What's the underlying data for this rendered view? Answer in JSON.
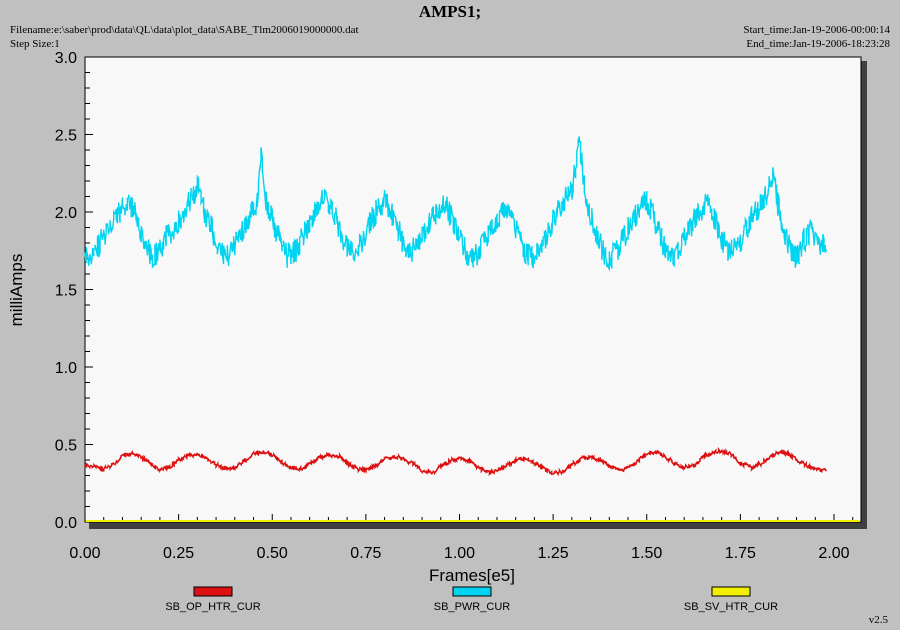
{
  "header": {
    "title": "AMPS1;",
    "filename": "Filename:e:\\saber\\prod\\data\\QL\\data\\plot_data\\SABE_Tlm2006019000000.dat",
    "step_size": "Step Size:1",
    "start_time": "Start_time:Jan-19-2006-00:00:14",
    "end_time": "End_time:Jan-19-2006-18:23:28",
    "version": "v2.5"
  },
  "colors": {
    "background": "#c0c0c0",
    "plot_area": "#f8f8f8",
    "shadow": "#404040"
  },
  "chart_data": {
    "type": "line",
    "title": "AMPS1;",
    "xlabel": "Frames[e5]",
    "ylabel": "milliAmps",
    "xlim": [
      0.0,
      2.1
    ],
    "ylim": [
      0.0,
      3.0
    ],
    "x_ticks": [
      "0.00",
      "0.25",
      "0.50",
      "0.75",
      "1.00",
      "1.25",
      "1.50",
      "1.75",
      "2.00"
    ],
    "y_ticks": [
      "0.0",
      "0.5",
      "1.0",
      "1.5",
      "2.0",
      "2.5",
      "3.0"
    ],
    "grid": false,
    "legend_position": "bottom",
    "series": [
      {
        "name": "SB_OP_HTR_CUR",
        "color": "#dd1111",
        "x": [
          0.0,
          0.02,
          0.05,
          0.08,
          0.1,
          0.13,
          0.15,
          0.18,
          0.2,
          0.23,
          0.25,
          0.28,
          0.3,
          0.32,
          0.35,
          0.38,
          0.4,
          0.43,
          0.45,
          0.48,
          0.5,
          0.53,
          0.55,
          0.58,
          0.6,
          0.63,
          0.65,
          0.68,
          0.7,
          0.73,
          0.75,
          0.78,
          0.8,
          0.83,
          0.85,
          0.88,
          0.9,
          0.93,
          0.95,
          0.98,
          1.0,
          1.03,
          1.05,
          1.08,
          1.1,
          1.13,
          1.15,
          1.18,
          1.2,
          1.23,
          1.25,
          1.28,
          1.3,
          1.33,
          1.35,
          1.38,
          1.4,
          1.43,
          1.45,
          1.48,
          1.5,
          1.53,
          1.55,
          1.58,
          1.6,
          1.63,
          1.65,
          1.68,
          1.7,
          1.73,
          1.75,
          1.78,
          1.8,
          1.83,
          1.85,
          1.88,
          1.9,
          1.93,
          1.95,
          1.98
        ],
        "y": [
          0.37,
          0.36,
          0.34,
          0.38,
          0.43,
          0.44,
          0.42,
          0.37,
          0.34,
          0.36,
          0.4,
          0.43,
          0.44,
          0.42,
          0.37,
          0.34,
          0.35,
          0.4,
          0.44,
          0.45,
          0.43,
          0.38,
          0.35,
          0.34,
          0.38,
          0.42,
          0.43,
          0.42,
          0.38,
          0.34,
          0.34,
          0.37,
          0.41,
          0.42,
          0.41,
          0.37,
          0.33,
          0.32,
          0.36,
          0.4,
          0.41,
          0.39,
          0.35,
          0.32,
          0.33,
          0.37,
          0.4,
          0.41,
          0.38,
          0.34,
          0.31,
          0.33,
          0.37,
          0.41,
          0.42,
          0.4,
          0.36,
          0.33,
          0.35,
          0.4,
          0.44,
          0.45,
          0.42,
          0.37,
          0.35,
          0.37,
          0.42,
          0.45,
          0.46,
          0.43,
          0.38,
          0.35,
          0.37,
          0.42,
          0.45,
          0.44,
          0.4,
          0.36,
          0.34,
          0.33
        ]
      },
      {
        "name": "SB_PWR_CUR",
        "color": "#00d4f0",
        "x": [
          0.0,
          0.02,
          0.04,
          0.06,
          0.08,
          0.1,
          0.12,
          0.14,
          0.16,
          0.18,
          0.2,
          0.22,
          0.24,
          0.26,
          0.28,
          0.3,
          0.31,
          0.32,
          0.34,
          0.36,
          0.38,
          0.4,
          0.42,
          0.44,
          0.46,
          0.47,
          0.48,
          0.5,
          0.52,
          0.54,
          0.56,
          0.58,
          0.6,
          0.62,
          0.64,
          0.66,
          0.68,
          0.7,
          0.72,
          0.74,
          0.76,
          0.78,
          0.8,
          0.82,
          0.84,
          0.86,
          0.88,
          0.9,
          0.92,
          0.94,
          0.96,
          0.98,
          1.0,
          1.02,
          1.04,
          1.06,
          1.08,
          1.1,
          1.12,
          1.14,
          1.16,
          1.18,
          1.2,
          1.22,
          1.24,
          1.26,
          1.28,
          1.3,
          1.32,
          1.34,
          1.36,
          1.38,
          1.4,
          1.42,
          1.44,
          1.46,
          1.48,
          1.5,
          1.52,
          1.54,
          1.56,
          1.58,
          1.6,
          1.62,
          1.64,
          1.66,
          1.68,
          1.7,
          1.72,
          1.74,
          1.76,
          1.78,
          1.8,
          1.82,
          1.84,
          1.85,
          1.86,
          1.88,
          1.9,
          1.92,
          1.94,
          1.96,
          1.98
        ],
        "y": [
          1.74,
          1.7,
          1.8,
          1.9,
          1.97,
          2.02,
          2.06,
          1.95,
          1.82,
          1.7,
          1.75,
          1.85,
          1.9,
          1.98,
          2.08,
          2.16,
          2.1,
          2.0,
          1.88,
          1.75,
          1.71,
          1.78,
          1.88,
          1.98,
          2.05,
          2.4,
          2.1,
          1.95,
          1.82,
          1.72,
          1.74,
          1.84,
          1.94,
          2.04,
          2.1,
          2.02,
          1.9,
          1.76,
          1.74,
          1.82,
          1.92,
          2.02,
          2.07,
          1.98,
          1.86,
          1.74,
          1.76,
          1.84,
          1.94,
          2.0,
          2.05,
          1.96,
          1.84,
          1.72,
          1.7,
          1.78,
          1.88,
          1.96,
          2.02,
          1.95,
          1.84,
          1.72,
          1.7,
          1.78,
          1.9,
          2.0,
          2.07,
          2.15,
          2.45,
          2.04,
          1.9,
          1.76,
          1.7,
          1.74,
          1.84,
          1.94,
          2.02,
          2.07,
          1.96,
          1.82,
          1.7,
          1.72,
          1.82,
          1.92,
          2.0,
          2.05,
          1.96,
          1.82,
          1.74,
          1.76,
          1.86,
          1.96,
          2.04,
          2.12,
          2.28,
          2.05,
          1.92,
          1.78,
          1.7,
          1.82,
          1.88,
          1.8,
          1.76
        ]
      },
      {
        "name": "SB_SV_HTR_CUR",
        "color": "#f0f000",
        "x": [
          0.0,
          2.1
        ],
        "y": [
          0.0,
          0.0
        ]
      }
    ]
  }
}
